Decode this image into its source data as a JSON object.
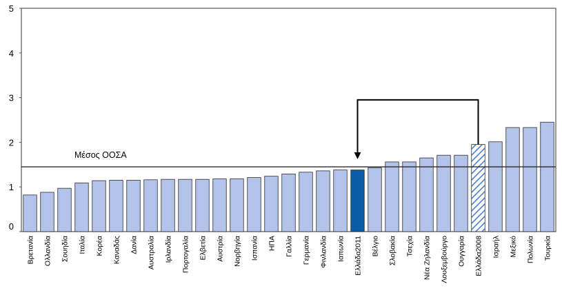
{
  "chart_data": {
    "type": "bar",
    "title": "",
    "xlabel": "",
    "ylabel": "",
    "ylim": [
      0,
      5
    ],
    "yticks": [
      0,
      1,
      2,
      3,
      4,
      5
    ],
    "grid": false,
    "categories": [
      "Βρετανία",
      "Ολλανδία",
      "Σουηδία",
      "Ιταλία",
      "Κορέα",
      "Καναδάς",
      "Δανία",
      "Αυστραλία",
      "Ιρλανδία",
      "Πορτογαλία",
      "Ελβετία",
      "Αυστρία",
      "Νορβηγία",
      "Ισπανία",
      "ΗΠΑ",
      "Γαλλία",
      "Γερμανία",
      "Φινλανδία",
      "Ιαπωνία",
      "Ελλάδα2011",
      "Βέλγιο",
      "Σλοβακία",
      "Τσεχία",
      "Νέα Ζηλανδία",
      "Λουξεμβούργο",
      "Ουγγαρία",
      "Ελλάδα2008",
      "Ισραήλ",
      "Μεξικό",
      "Πολωνία",
      "Τουρκία"
    ],
    "values": [
      0.82,
      0.88,
      0.97,
      1.09,
      1.14,
      1.15,
      1.15,
      1.16,
      1.17,
      1.17,
      1.17,
      1.18,
      1.18,
      1.21,
      1.24,
      1.29,
      1.33,
      1.36,
      1.38,
      1.38,
      1.43,
      1.56,
      1.56,
      1.65,
      1.71,
      1.71,
      1.95,
      2.01,
      2.33,
      2.33,
      2.45
    ],
    "highlight": {
      "Ελλάδα2011": "solid",
      "Ελλάδα2008": "hatched"
    },
    "average": {
      "label": "Μέσος ΟΟΣΑ",
      "value": 1.45
    },
    "arrow": {
      "from": "Ελλάδα2008",
      "to": "Ελλάδα2011"
    },
    "colors": {
      "bar": "#b4c3ea",
      "bar_edge": "#2b2b2b",
      "highlight": "#0a5ca8",
      "hatch": "#4a7fd0",
      "average_line": "#2a2a2a",
      "arrow": "#000000"
    }
  }
}
